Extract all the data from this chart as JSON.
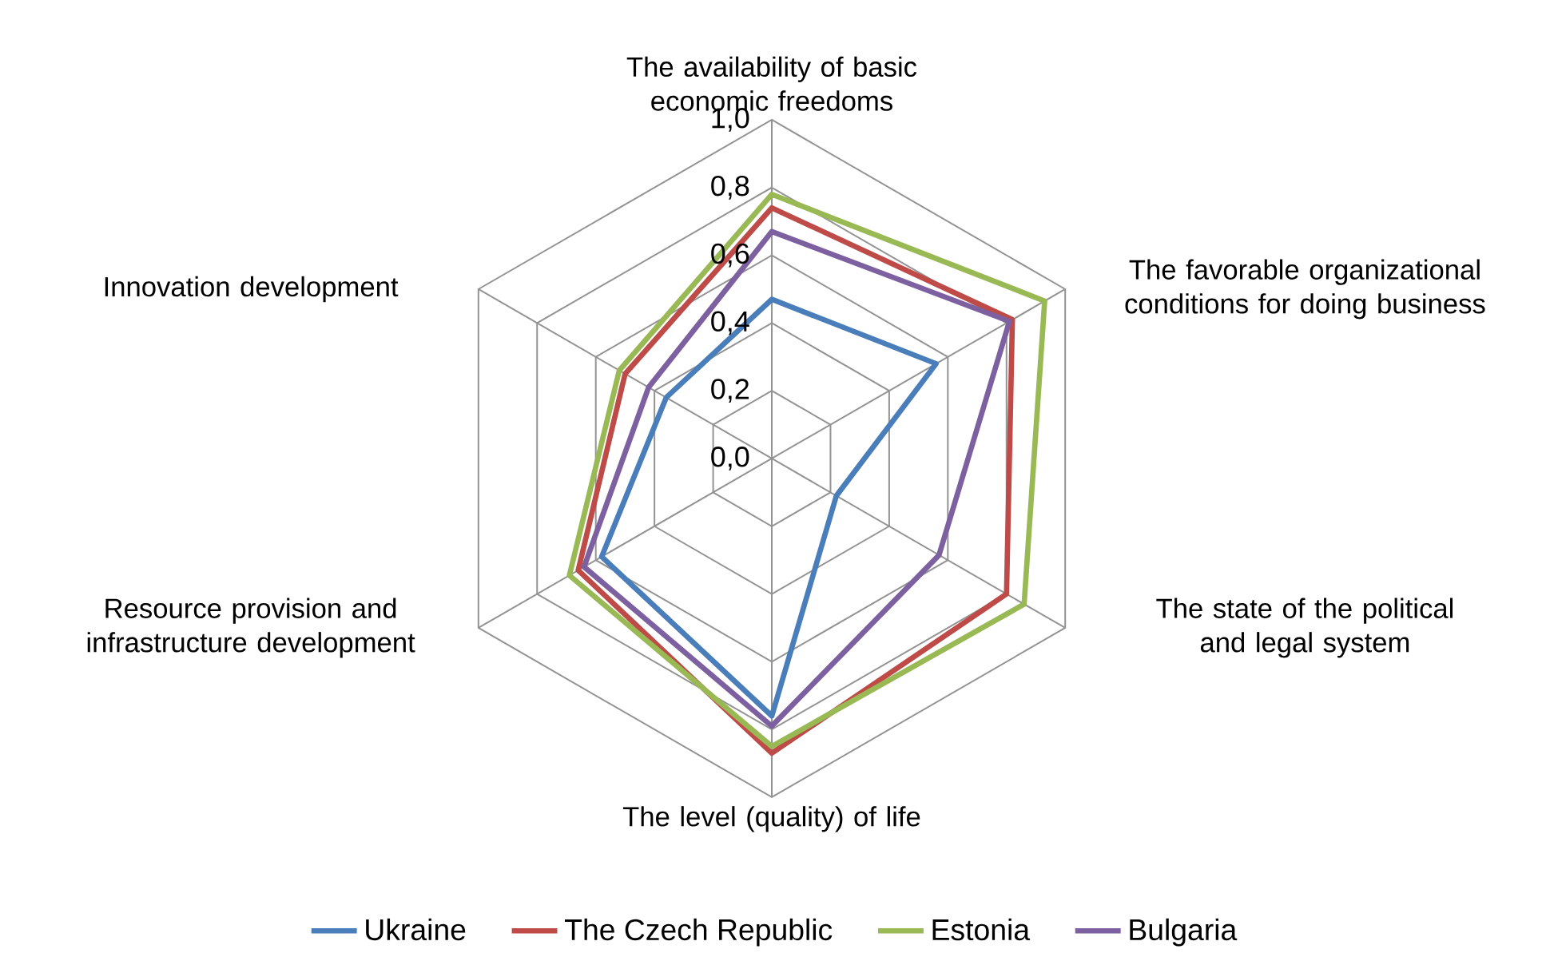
{
  "chart_data": {
    "type": "radar",
    "categories": [
      "The availability of basic economic freedoms",
      "The favorable organizational conditions for doing business",
      "The state of the political and legal system",
      "The level (quality) of life",
      "Resource provision and infrastructure development",
      "Innovation development"
    ],
    "series": [
      {
        "name": "Ukraine",
        "color": "#4a7ebb",
        "values": [
          0.47,
          0.56,
          0.22,
          0.76,
          0.58,
          0.36
        ]
      },
      {
        "name": "The Czech Republic",
        "color": "#be4b48",
        "values": [
          0.74,
          0.82,
          0.8,
          0.87,
          0.66,
          0.5
        ]
      },
      {
        "name": "Estonia",
        "color": "#98b954",
        "values": [
          0.78,
          0.93,
          0.86,
          0.85,
          0.69,
          0.52
        ]
      },
      {
        "name": "Bulgaria",
        "color": "#7d60a0",
        "values": [
          0.67,
          0.81,
          0.57,
          0.79,
          0.64,
          0.42
        ]
      }
    ],
    "ylim": [
      0,
      1
    ],
    "yticks": [
      {
        "value": 0,
        "label": "0,0"
      },
      {
        "value": 0.2,
        "label": "0,2"
      },
      {
        "value": 0.4,
        "label": "0,4"
      },
      {
        "value": 0.6,
        "label": "0,6"
      },
      {
        "value": 0.8,
        "label": "0,8"
      },
      {
        "value": 1,
        "label": "1,0"
      }
    ],
    "grid": true,
    "legend": "bottom"
  }
}
